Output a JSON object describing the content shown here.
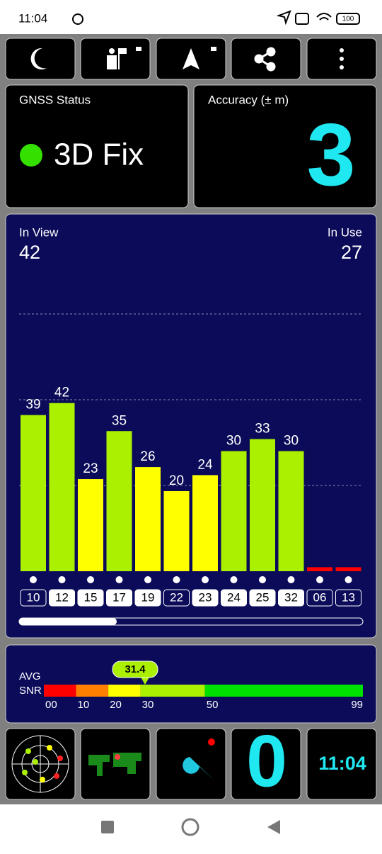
{
  "status_bar": {
    "time": "11:04",
    "battery": "100"
  },
  "gnss_status": {
    "label": "GNSS Status",
    "fix": "3D Fix"
  },
  "accuracy": {
    "label": "Accuracy (± m)",
    "value": "3"
  },
  "satellites": {
    "in_view_label": "In View",
    "in_view": 42,
    "in_use_label": "In Use",
    "in_use": 27,
    "ids": [
      "10",
      "12",
      "15",
      "17",
      "19",
      "22",
      "23",
      "24",
      "25",
      "32",
      "06",
      "13"
    ],
    "snr": [
      39,
      42,
      23,
      35,
      26,
      20,
      24,
      30,
      33,
      30,
      1,
      1
    ],
    "used": [
      false,
      true,
      true,
      true,
      true,
      false,
      true,
      true,
      true,
      true,
      false,
      false
    ]
  },
  "snr_scale": {
    "avg_label": "AVG",
    "snr_label": "SNR",
    "average": 31.4,
    "ticks": [
      {
        "value": 0,
        "label": "00"
      },
      10,
      20,
      30,
      50,
      99
    ],
    "colors": [
      "#ff0000",
      "#ff8000",
      "#ffff00",
      "#aaf000",
      "#00e000"
    ]
  },
  "widgets": {
    "count": "0",
    "clock": "11:04"
  }
}
